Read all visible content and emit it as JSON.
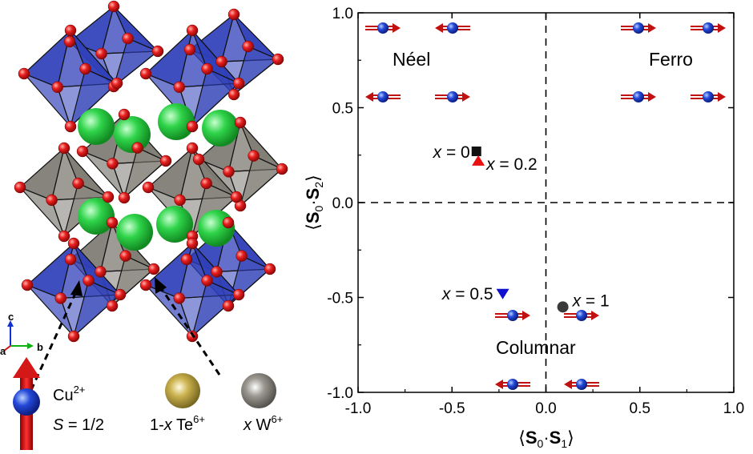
{
  "structure_panel": {
    "axes_labels": {
      "c": "c",
      "a": "a",
      "b": "b"
    },
    "legend": [
      {
        "label_main": "Cu",
        "label_sup": "2+",
        "sublabel_italic": "S",
        "sublabel_rest": " = 1/2",
        "color": "#1f3fbf"
      },
      {
        "label_pre": "1-",
        "label_italic": "x",
        "label_main": " Te",
        "label_sup": "6+",
        "color": "#c8b04a"
      },
      {
        "label_italic": "x",
        "label_main": " W",
        "label_sup": "6+",
        "color": "#9a9890"
      }
    ],
    "colors": {
      "octahedron_blue": "#2f3fb8",
      "octahedron_grey": "#7d7a72",
      "oxygen": "#e01818",
      "site_green": "#2fd44a",
      "spin_arrow": "#c01010"
    }
  },
  "chart_data": {
    "type": "scatter",
    "xlabel": "⟨S0·S1⟩",
    "ylabel": "⟨S0·S2⟩",
    "xlim": [
      -1.0,
      1.0
    ],
    "ylim": [
      -1.0,
      1.0
    ],
    "xticks": [
      "-1.0",
      "-0.5",
      "0.0",
      "0.5",
      "1.0"
    ],
    "yticks": [
      "1.0",
      "0.5",
      "0.0",
      "-0.5",
      "-1.0"
    ],
    "grid": false,
    "reference_lines": [
      {
        "axis": "x",
        "value": 0
      },
      {
        "axis": "y",
        "value": 0
      }
    ],
    "region_labels": [
      "Néel",
      "Ferro",
      "Columnar"
    ],
    "series": [
      {
        "label_italic": "x",
        "label_rest": " = 0",
        "x": -0.37,
        "y": 0.27,
        "marker": "square",
        "color": "#111111"
      },
      {
        "label_italic": "x",
        "label_rest": " = 0.2",
        "x": -0.36,
        "y": 0.22,
        "marker": "triangle-up",
        "color": "#e81010"
      },
      {
        "label_italic": "x",
        "label_rest": " = 0.5",
        "x": -0.23,
        "y": -0.48,
        "marker": "triangle-down",
        "color": "#1010d0"
      },
      {
        "label_italic": "x",
        "label_rest": " = 1",
        "x": 0.09,
        "y": -0.55,
        "marker": "circle",
        "color": "#3a3a3a"
      }
    ],
    "spin_icons": {
      "neel": [
        "right",
        "left",
        "left",
        "right"
      ],
      "ferro": [
        "right",
        "right",
        "right",
        "right"
      ],
      "columnar": [
        "right",
        "right",
        "left",
        "left"
      ]
    }
  }
}
